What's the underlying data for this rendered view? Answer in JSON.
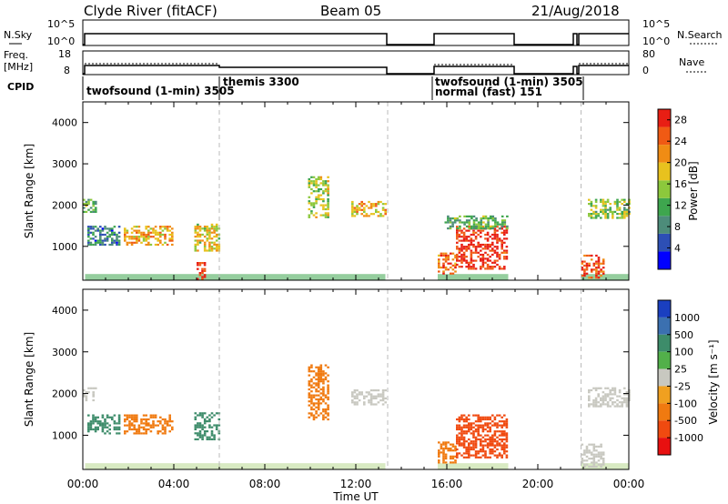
{
  "header": {
    "station": "Clyde River (fitACF)",
    "beam": "Beam 05",
    "date": "21/Aug/2018"
  },
  "strip_labels": {
    "nsky": "N.Sky",
    "nsky_ticks": [
      "10^5",
      "10^0"
    ],
    "nsearch": "N.Search",
    "nsearch_ticks": [
      "10^5",
      "10^0"
    ],
    "freq": "Freq.",
    "freq_unit": "[MHz]",
    "freq_ticks": [
      "18",
      "8"
    ],
    "nave": "Nave",
    "nave_ticks": [
      "80",
      "0"
    ],
    "cpid": "CPID"
  },
  "cpid_segments": [
    {
      "label": "twofsound (1-min) 3505",
      "start_hr": 0.0,
      "end_hr": 6.0
    },
    {
      "label": "themis 3300",
      "start_hr": 6.0,
      "end_hr": 13.4
    },
    {
      "label": "twofsound (1-min) 3505",
      "start_hr": 15.6,
      "end_hr": 21.9
    },
    {
      "label": "normal (fast) 151",
      "start_hr": 15.6,
      "end_hr": 21.9
    }
  ],
  "colors": {
    "power_scale": [
      "#0000ff",
      "#2d4fb5",
      "#4d8c7a",
      "#3ea64e",
      "#8cc83c",
      "#e8c21e",
      "#f08c14",
      "#f05a14",
      "#e81e14"
    ],
    "velocity_scale": [
      "#1a3fc0",
      "#3b70b0",
      "#3d8c6a",
      "#52b04a",
      "#c8c8c0",
      "#f0a020",
      "#f07a10",
      "#f04a10",
      "#e81010"
    ]
  },
  "chart_data": [
    {
      "type": "heatmap",
      "panel": "power",
      "xlabel": "Time UT",
      "ylabel": "Slant Range [km]",
      "xlim": [
        0,
        24
      ],
      "ylim": [
        180,
        4500
      ],
      "x_ticks": [
        "00:00",
        "04:00",
        "08:00",
        "12:00",
        "16:00",
        "20:00",
        "00:00"
      ],
      "y_ticks": [
        "1000",
        "2000",
        "3000",
        "4000"
      ],
      "colorbar_label": "Power [dB]",
      "colorbar_ticks": [
        "4",
        "8",
        "12",
        "16",
        "20",
        "24",
        "28"
      ],
      "clim": [
        0,
        30
      ],
      "regions": [
        {
          "t0": 0.0,
          "t1": 0.6,
          "r0": 1850,
          "r1": 2150,
          "value": 12
        },
        {
          "t0": 0.2,
          "t1": 1.6,
          "r0": 1050,
          "r1": 1500,
          "value": 8
        },
        {
          "t0": 1.8,
          "t1": 3.9,
          "r0": 1050,
          "r1": 1500,
          "value": 20
        },
        {
          "t0": 4.9,
          "t1": 6.0,
          "r0": 900,
          "r1": 1550,
          "value": 18
        },
        {
          "t0": 5.0,
          "t1": 5.4,
          "r0": 200,
          "r1": 620,
          "value": 28
        },
        {
          "t0": 9.9,
          "t1": 10.8,
          "r0": 1700,
          "r1": 2700,
          "value": 16
        },
        {
          "t0": 11.8,
          "t1": 13.3,
          "r0": 1750,
          "r1": 2100,
          "value": 20
        },
        {
          "t0": 15.6,
          "t1": 16.4,
          "r0": 350,
          "r1": 850,
          "value": 24
        },
        {
          "t0": 16.4,
          "t1": 18.6,
          "r0": 450,
          "r1": 1500,
          "value": 28
        },
        {
          "t0": 15.9,
          "t1": 18.7,
          "r0": 1450,
          "r1": 1750,
          "value": 12
        },
        {
          "t0": 21.9,
          "t1": 22.9,
          "r0": 250,
          "r1": 800,
          "value": 26
        },
        {
          "t0": 22.2,
          "t1": 24.0,
          "r0": 1700,
          "r1": 2150,
          "value": 14
        }
      ]
    },
    {
      "type": "heatmap",
      "panel": "velocity",
      "xlabel": "Time UT",
      "ylabel": "Slant Range [km]",
      "xlim": [
        0,
        24
      ],
      "ylim": [
        180,
        4500
      ],
      "x_ticks": [
        "00:00",
        "04:00",
        "08:00",
        "12:00",
        "16:00",
        "20:00",
        "00:00"
      ],
      "y_ticks": [
        "1000",
        "2000",
        "3000",
        "4000"
      ],
      "colorbar_label": "Velocity [m s⁻¹]",
      "colorbar_ticks": [
        "1000",
        "500",
        "100",
        "25",
        "-25",
        "-100",
        "-500",
        "-1000"
      ],
      "regions": [
        {
          "t0": 0.0,
          "t1": 0.6,
          "r0": 1850,
          "r1": 2150,
          "value": 0
        },
        {
          "t0": 0.2,
          "t1": 1.6,
          "r0": 1050,
          "r1": 1500,
          "value": 200
        },
        {
          "t0": 1.8,
          "t1": 3.9,
          "r0": 1050,
          "r1": 1500,
          "value": -300
        },
        {
          "t0": 4.9,
          "t1": 6.0,
          "r0": 900,
          "r1": 1550,
          "value": 100
        },
        {
          "t0": 9.9,
          "t1": 10.8,
          "r0": 1400,
          "r1": 2700,
          "value": -500
        },
        {
          "t0": 11.8,
          "t1": 13.3,
          "r0": 1750,
          "r1": 2100,
          "value": 0
        },
        {
          "t0": 15.6,
          "t1": 16.4,
          "r0": 350,
          "r1": 850,
          "value": -500
        },
        {
          "t0": 16.4,
          "t1": 18.6,
          "r0": 450,
          "r1": 1500,
          "value": -700
        },
        {
          "t0": 21.9,
          "t1": 22.9,
          "r0": 250,
          "r1": 800,
          "value": 0
        },
        {
          "t0": 22.2,
          "t1": 24.0,
          "r0": 1700,
          "r1": 2150,
          "value": 0
        }
      ]
    }
  ]
}
